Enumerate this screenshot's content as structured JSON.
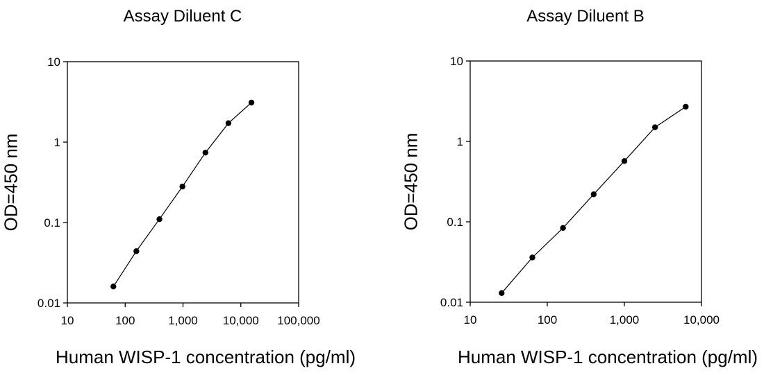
{
  "chart_data": [
    {
      "type": "line",
      "title": "Assay Diluent C",
      "xlabel": "Human WISP-1 concentration (pg/ml)",
      "ylabel": "OD=450 nm",
      "xscale": "log",
      "yscale": "log",
      "xlim": [
        10,
        100000
      ],
      "ylim": [
        0.01,
        10
      ],
      "xticks": [
        "10",
        "100",
        "1,000",
        "10,000",
        "100,000"
      ],
      "yticks": [
        "0.01",
        "0.1",
        "1",
        "10"
      ],
      "grid": false,
      "legend": "none",
      "series": [
        {
          "x": [
            62.5,
            156,
            391,
            977,
            2441,
            6104,
            15259
          ],
          "y": [
            0.016,
            0.044,
            0.11,
            0.28,
            0.74,
            1.72,
            3.1
          ]
        }
      ]
    },
    {
      "type": "line",
      "title": "Assay Diluent B",
      "xlabel": "Human WISP-1 concentration (pg/ml)",
      "ylabel": "OD=450 nm",
      "xscale": "log",
      "yscale": "log",
      "xlim": [
        10,
        10000
      ],
      "ylim": [
        0.01,
        10
      ],
      "xticks": [
        "10",
        "100",
        "1,000",
        "10,000"
      ],
      "yticks": [
        "0.01",
        "0.1",
        "1",
        "10"
      ],
      "grid": false,
      "legend": "none",
      "series": [
        {
          "x": [
            25.6,
            64,
            160,
            400,
            1000,
            2500,
            6250
          ],
          "y": [
            0.013,
            0.036,
            0.084,
            0.22,
            0.57,
            1.5,
            2.7
          ]
        }
      ]
    }
  ]
}
